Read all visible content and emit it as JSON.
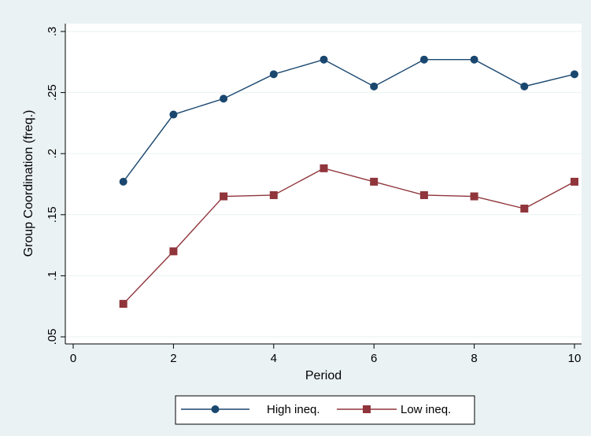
{
  "chart_data": {
    "type": "line",
    "xlabel": "Period",
    "ylabel": "Group Coordination (freq.)",
    "xlim": [
      0,
      10
    ],
    "ylim": [
      0.05,
      0.3
    ],
    "x_ticks": [
      0,
      2,
      4,
      6,
      8,
      10
    ],
    "x_tick_labels": [
      "0",
      "2",
      "4",
      "6",
      "8",
      "10"
    ],
    "y_ticks": [
      0.05,
      0.1,
      0.15,
      0.2,
      0.25,
      0.3
    ],
    "y_tick_labels": [
      ".05",
      ".1",
      ".15",
      ".2",
      ".25",
      ".3"
    ],
    "grid": "horizontal",
    "legend_position": "bottom",
    "x": [
      1,
      2,
      3,
      4,
      5,
      6,
      7,
      8,
      9,
      10
    ],
    "series": [
      {
        "name": "High ineq.",
        "color": "#1a476f",
        "marker": "circle",
        "values": [
          0.177,
          0.232,
          0.245,
          0.265,
          0.277,
          0.255,
          0.277,
          0.277,
          0.255,
          0.265
        ]
      },
      {
        "name": "Low ineq.",
        "color": "#90353b",
        "marker": "square",
        "values": [
          0.077,
          0.12,
          0.165,
          0.166,
          0.188,
          0.177,
          0.166,
          0.165,
          0.155,
          0.177
        ]
      }
    ]
  }
}
